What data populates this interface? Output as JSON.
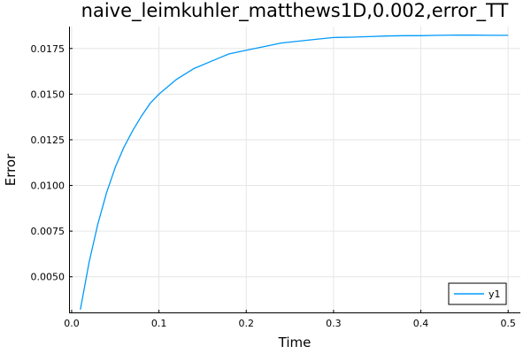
{
  "chart_data": {
    "type": "line",
    "title": "naive_leimkuhler_matthews1D,0.002,error_TT",
    "xlabel": "Time",
    "ylabel": "Error",
    "xlim": [
      -0.003,
      0.514
    ],
    "ylim": [
      0.003,
      0.0187
    ],
    "xticks": [
      0.0,
      0.1,
      0.2,
      0.3,
      0.4,
      0.5
    ],
    "xtick_labels": [
      "0.0",
      "0.1",
      "0.2",
      "0.3",
      "0.4",
      "0.5"
    ],
    "yticks": [
      0.005,
      0.0075,
      0.01,
      0.0125,
      0.015,
      0.0175
    ],
    "ytick_labels": [
      "0.0050",
      "0.0075",
      "0.0100",
      "0.0125",
      "0.0150",
      "0.0175"
    ],
    "grid": true,
    "legend_position": "bottom-right",
    "series": [
      {
        "name": "y1",
        "color": "#009AFA",
        "x": [
          0.01,
          0.02,
          0.03,
          0.04,
          0.05,
          0.06,
          0.07,
          0.08,
          0.09,
          0.1,
          0.12,
          0.14,
          0.16,
          0.18,
          0.2,
          0.22,
          0.24,
          0.26,
          0.28,
          0.3,
          0.32,
          0.34,
          0.36,
          0.38,
          0.4,
          0.42,
          0.44,
          0.46,
          0.48,
          0.5
        ],
        "y": [
          0.0032,
          0.0058,
          0.0079,
          0.0096,
          0.011,
          0.0121,
          0.013,
          0.0138,
          0.0145,
          0.015,
          0.0158,
          0.0164,
          0.0168,
          0.0172,
          0.0174,
          0.0176,
          0.0178,
          0.0179,
          0.018,
          0.0181,
          0.01812,
          0.01815,
          0.01818,
          0.0182,
          0.0182,
          0.01822,
          0.01823,
          0.01823,
          0.01822,
          0.01822
        ]
      }
    ]
  }
}
